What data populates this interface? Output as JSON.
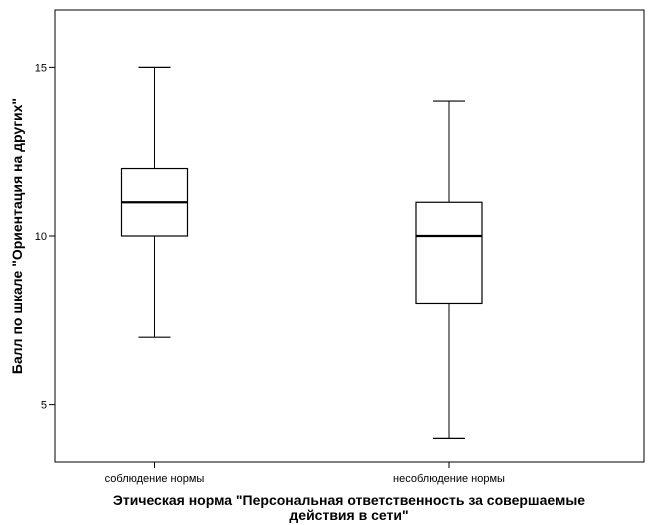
{
  "chart_data": {
    "type": "boxplot",
    "categories": [
      "соблюдение нормы",
      "несоблюдение нормы"
    ],
    "boxes": [
      {
        "category": "соблюдение нормы",
        "min": 7,
        "q1": 10,
        "median": 11,
        "q3": 12,
        "max": 15
      },
      {
        "category": "несоблюдение нормы",
        "min": 4,
        "q1": 8,
        "median": 10,
        "q3": 11,
        "max": 14
      }
    ],
    "ylabel": "Балл по шкале \"Ориентация на других\"",
    "xlabel_lines": [
      "Этическая норма \"Персональная ответственность за совершаемые",
      "действия в сети\""
    ],
    "ylim": [
      3.3,
      16.7
    ],
    "yticks": [
      5,
      10,
      15
    ],
    "grid": false,
    "colors": {
      "box_fill": "#ffffff",
      "stroke": "#000000"
    }
  }
}
